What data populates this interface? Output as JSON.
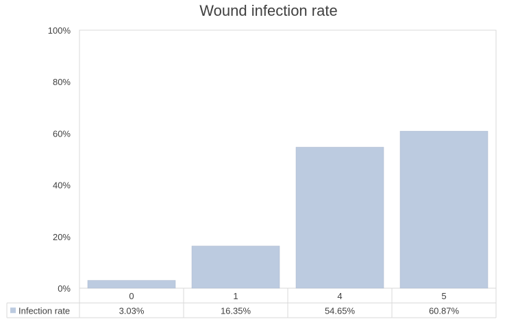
{
  "chart_data": {
    "type": "bar",
    "title": "Wound infection rate",
    "categories": [
      "0",
      "1",
      "4",
      "5"
    ],
    "series": [
      {
        "name": "Infection rate",
        "values": [
          3.03,
          16.35,
          54.65,
          60.87
        ],
        "labels": [
          "3.03%",
          "16.35%",
          "54.65%",
          "60.87%"
        ],
        "color": "#bccbe0"
      }
    ],
    "ylim": [
      0,
      100
    ],
    "yticks": [
      "0%",
      "20%",
      "40%",
      "60%",
      "80%",
      "100%"
    ],
    "xlabel": "",
    "ylabel": "",
    "grid": false,
    "legend": "data-table-left"
  }
}
